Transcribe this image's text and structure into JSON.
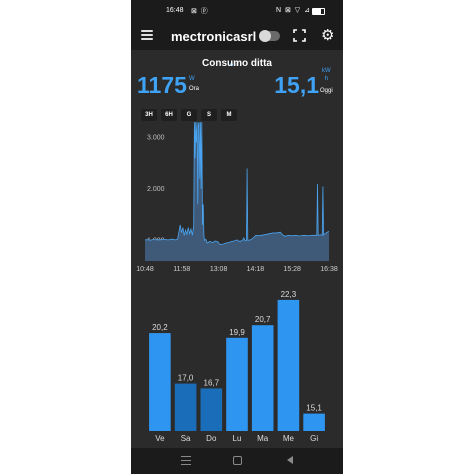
{
  "status_bar": {
    "time": "16:48",
    "notif_icons": "⊠ ⓟ",
    "system_icons": "N ⊠ ▽ ⊿",
    "battery_level": 0.75
  },
  "toolbar": {
    "menu_icon": "hamburger-menu-icon",
    "title": "mectronicasrl",
    "toggle_on": false,
    "fullscreen_icon": "fullscreen-icon",
    "settings_icon": "gear-icon"
  },
  "colors": {
    "accent": "#3fa2f5",
    "bar_light": "#2e95f0",
    "bar_dark": "#1a6db8",
    "background": "#2b2b2b",
    "area_fill": "#3e5a78",
    "line": "#4aa3f0"
  },
  "pager": {
    "count": 2,
    "active": 0
  },
  "panel": {
    "title": "Consumo ditta",
    "power": {
      "value": "1175",
      "unit": "W",
      "label": "Ora"
    },
    "energy": {
      "value": "15,1",
      "unit_top": "kW",
      "unit_bottom": "h",
      "label": "Oggi"
    },
    "ranges": [
      "3H",
      "6H",
      "G",
      "S",
      "M"
    ],
    "selected_range": "G"
  },
  "chart_data": [
    {
      "type": "area",
      "title": "",
      "xlabel": "",
      "ylabel": "",
      "x_ticks": [
        "10:48",
        "11:58",
        "13:08",
        "14:18",
        "15:28",
        "16:38"
      ],
      "y_ticks": [
        "1.000",
        "2.000",
        "3.000"
      ],
      "ylim": [
        600,
        3400
      ],
      "grid": false,
      "series": [
        {
          "values": [
            [
              0,
              1010
            ],
            [
              2,
              1015
            ],
            [
              4,
              1005
            ],
            [
              6,
              1020
            ],
            [
              8,
              1010
            ],
            [
              10,
              1015
            ],
            [
              12,
              1010
            ],
            [
              14,
              1020
            ],
            [
              16,
              1015
            ],
            [
              18,
              1012
            ],
            [
              20,
              1025
            ],
            [
              22,
              1010
            ],
            [
              24,
              1020
            ],
            [
              25,
              1150
            ],
            [
              26,
              1300
            ],
            [
              27,
              1150
            ],
            [
              28,
              1250
            ],
            [
              29,
              1100
            ],
            [
              30,
              1200
            ],
            [
              31,
              1120
            ],
            [
              32,
              1250
            ],
            [
              33,
              1130
            ],
            [
              34,
              1220
            ],
            [
              35,
              1100
            ],
            [
              36,
              1300
            ],
            [
              36.5,
              3300
            ],
            [
              37,
              2600
            ],
            [
              37.5,
              3300
            ],
            [
              38,
              2900
            ],
            [
              38.5,
              3300
            ],
            [
              39,
              1700
            ],
            [
              39.5,
              3250
            ],
            [
              40,
              3300
            ],
            [
              40.5,
              2200
            ],
            [
              41,
              3300
            ],
            [
              41.5,
              2000
            ],
            [
              42,
              3300
            ],
            [
              42.5,
              1300
            ],
            [
              43,
              1700
            ],
            [
              43.5,
              1100
            ],
            [
              44,
              1000
            ],
            [
              45,
              1020
            ],
            [
              46,
              950
            ],
            [
              48,
              980
            ],
            [
              50,
              960
            ],
            [
              52,
              990
            ],
            [
              54,
              970
            ],
            [
              55,
              930
            ],
            [
              56,
              920
            ],
            [
              58,
              930
            ],
            [
              60,
              950
            ],
            [
              62,
              960
            ],
            [
              64,
              980
            ],
            [
              66,
              990
            ],
            [
              68,
              1010
            ],
            [
              70,
              980
            ],
            [
              72,
              1000
            ],
            [
              73,
              1050
            ],
            [
              74,
              990
            ],
            [
              75,
              1000
            ],
            [
              75.5,
              2400
            ],
            [
              76,
              1000
            ],
            [
              78,
              1010
            ],
            [
              80,
              1050
            ],
            [
              82,
              1100
            ],
            [
              84,
              1090
            ],
            [
              86,
              1100
            ],
            [
              88,
              1110
            ],
            [
              90,
              1120
            ],
            [
              92,
              1130
            ],
            [
              94,
              1140
            ],
            [
              95,
              1150
            ],
            [
              96,
              1140
            ],
            [
              98,
              1150
            ],
            [
              100,
              1160
            ],
            [
              102,
              1100
            ],
            [
              104,
              1080
            ],
            [
              106,
              1100
            ],
            [
              108,
              1090
            ],
            [
              110,
              1095
            ],
            [
              112,
              1100
            ],
            [
              114,
              1085
            ],
            [
              116,
              1095
            ],
            [
              118,
              1100
            ],
            [
              120,
              1090
            ],
            [
              122,
              1095
            ],
            [
              124,
              1100
            ],
            [
              126,
              1100
            ],
            [
              127,
              1100
            ],
            [
              127.5,
              2100
            ],
            [
              128,
              1100
            ],
            [
              130,
              1110
            ],
            [
              131,
              1100
            ],
            [
              131.5,
              2050
            ],
            [
              132,
              1110
            ],
            [
              134,
              1150
            ],
            [
              136,
              1175
            ]
          ]
        }
      ]
    },
    {
      "type": "bar",
      "title": "",
      "categories": [
        "Ve",
        "Sa",
        "Do",
        "Lu",
        "Ma",
        "Me",
        "Gi"
      ],
      "values": [
        20.2,
        17.0,
        16.7,
        19.9,
        20.7,
        22.3,
        15.1
      ],
      "labels": [
        "20,2",
        "17,0",
        "16,7",
        "19,9",
        "20,7",
        "22,3",
        "15,1"
      ],
      "colors": [
        "#2e95f0",
        "#1a6db8",
        "#1a6db8",
        "#2e95f0",
        "#2e95f0",
        "#2e95f0",
        "#2e95f0"
      ],
      "ylim": [
        14,
        22.8
      ],
      "grid": false
    }
  ],
  "navbar": {
    "recents_icon": "recents-icon",
    "home_icon": "home-icon",
    "back_icon": "back-icon"
  }
}
